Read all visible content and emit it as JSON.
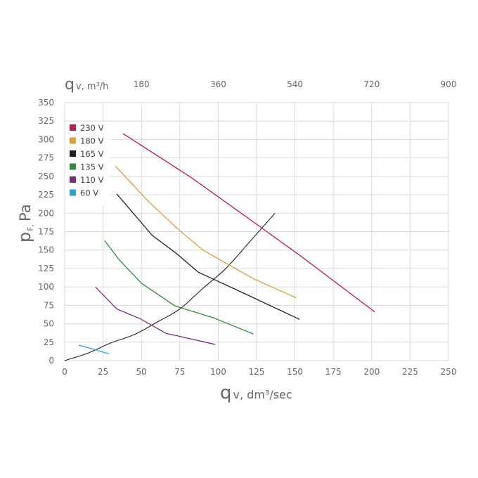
{
  "chart_data": {
    "type": "line",
    "xlabel_main": "q",
    "xlabel_sub": "v, dm³/sec",
    "x2label_main": "q",
    "x2label_sub": "v, m³/h",
    "ylabel_main": "p",
    "ylabel_sub": "F,",
    "ylabel_unit": "Pa",
    "xlim": [
      0,
      250
    ],
    "ylim": [
      0,
      350
    ],
    "x_ticks": [
      "0",
      "25",
      "50",
      "75",
      "100",
      "125",
      "150",
      "175",
      "200",
      "225",
      "250"
    ],
    "y_ticks": [
      "0",
      "25",
      "50",
      "75",
      "100",
      "125",
      "150",
      "175",
      "200",
      "225",
      "250",
      "275",
      "300",
      "325",
      "350"
    ],
    "x2_ticks": [
      {
        "value": 50,
        "label": "180"
      },
      {
        "value": 100,
        "label": "360"
      },
      {
        "value": 150,
        "label": "540"
      },
      {
        "value": 200,
        "label": "720"
      },
      {
        "value": 250,
        "label": "900"
      }
    ],
    "grid": true,
    "legend_position": "top-left",
    "series": [
      {
        "name": "230 V",
        "color": "#c2185b",
        "points": [
          [
            38,
            308
          ],
          [
            82,
            249
          ],
          [
            115,
            200
          ],
          [
            155,
            140
          ],
          [
            202,
            66
          ]
        ]
      },
      {
        "name": "180 V",
        "color": "#d9a036",
        "points": [
          [
            33,
            264
          ],
          [
            55,
            215
          ],
          [
            73,
            180
          ],
          [
            90,
            150
          ],
          [
            123,
            111
          ],
          [
            151,
            85
          ]
        ]
      },
      {
        "name": "165 V",
        "color": "#222222",
        "points": [
          [
            34,
            226
          ],
          [
            57,
            170
          ],
          [
            73,
            145
          ],
          [
            87,
            120
          ],
          [
            113,
            95
          ],
          [
            153,
            56
          ]
        ]
      },
      {
        "name": "135 V",
        "color": "#2e8b3e",
        "points": [
          [
            26,
            163
          ],
          [
            35,
            138
          ],
          [
            50,
            105
          ],
          [
            72,
            74
          ],
          [
            97,
            58
          ],
          [
            123,
            36
          ]
        ]
      },
      {
        "name": "110 V",
        "color": "#7b2e7e",
        "points": [
          [
            20,
            100
          ],
          [
            34,
            70
          ],
          [
            49,
            57
          ],
          [
            66,
            37
          ],
          [
            98,
            22
          ]
        ]
      },
      {
        "name": "60 V",
        "color": "#29a3d6",
        "points": [
          [
            9,
            21
          ],
          [
            18,
            16
          ],
          [
            29,
            9
          ]
        ]
      }
    ],
    "system_curve": {
      "color": "#222222",
      "points": [
        [
          0,
          0
        ],
        [
          15,
          10
        ],
        [
          30,
          24
        ],
        [
          45,
          35
        ],
        [
          60,
          52
        ],
        [
          75,
          70
        ],
        [
          90,
          98
        ],
        [
          105,
          125
        ],
        [
          120,
          160
        ],
        [
          137,
          200
        ]
      ]
    }
  }
}
